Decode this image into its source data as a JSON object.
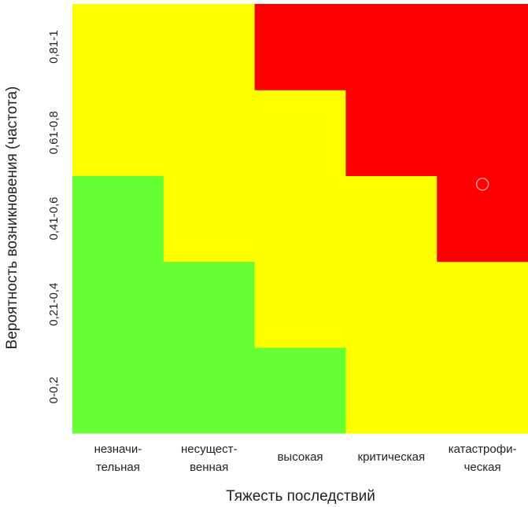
{
  "chart_data": {
    "type": "heatmap",
    "title": "",
    "xlabel": "Тяжесть последствий",
    "ylabel": "Вероятность возникновения (частота)",
    "x_categories": [
      [
        "незначи-",
        "тельная"
      ],
      [
        "несущест-",
        "венная"
      ],
      [
        "высокая"
      ],
      [
        "критическая"
      ],
      [
        "катастрофи-",
        "ческая"
      ]
    ],
    "y_categories": [
      "0-0,2",
      "0,21-0,4",
      "0,41-0,6",
      "0,61-0,8",
      "0,81-1"
    ],
    "levels": {
      "low": "#66ff33",
      "medium": "#ffff00",
      "high": "#ff0000"
    },
    "cells": [
      [
        "low",
        "low",
        "low",
        "medium",
        "medium"
      ],
      [
        "low",
        "low",
        "medium",
        "medium",
        "medium"
      ],
      [
        "low",
        "medium",
        "medium",
        "medium",
        "high"
      ],
      [
        "medium",
        "medium",
        "medium",
        "high",
        "high"
      ],
      [
        "medium",
        "medium",
        "high",
        "high",
        "high"
      ]
    ],
    "marker": {
      "x_index": 4,
      "y_value": 0.58,
      "color": "#e8a0a0"
    },
    "grid": false,
    "legend": "none"
  }
}
